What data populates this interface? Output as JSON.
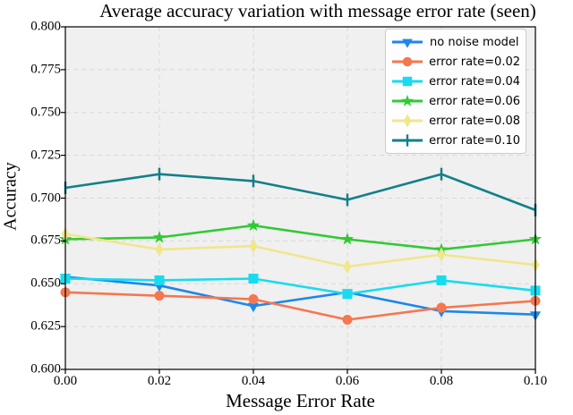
{
  "chart_data": {
    "type": "line",
    "title": "Average accuracy variation with message error rate (seen)",
    "xlabel": "Message Error Rate",
    "ylabel": "Accuracy",
    "xlim": [
      0.0,
      0.1
    ],
    "ylim": [
      0.6,
      0.8
    ],
    "x_tick_labels": [
      "0.00",
      "0.02",
      "0.04",
      "0.06",
      "0.08",
      "0.10"
    ],
    "y_tick_labels": [
      "0.600",
      "0.625",
      "0.650",
      "0.675",
      "0.700",
      "0.725",
      "0.750",
      "0.775",
      "0.800"
    ],
    "grid": true,
    "grid_style": "dashed",
    "legend_position": "upper right",
    "colors": {
      "plot_background": "#f0f0f0",
      "grid": "#d8d8d8",
      "spine": "#000000",
      "legend_border": "#cccccc",
      "legend_background": "#fdfdfd"
    },
    "x": [
      0.0,
      0.02,
      0.04,
      0.06,
      0.08,
      0.1
    ],
    "series": [
      {
        "name": "no noise model",
        "color": "#1d87ea",
        "marker": "triangle-down-icon",
        "values": [
          0.654,
          0.649,
          0.637,
          0.645,
          0.634,
          0.632
        ]
      },
      {
        "name": "error rate=0.02",
        "color": "#f5774f",
        "marker": "circle-icon",
        "values": [
          0.645,
          0.643,
          0.641,
          0.629,
          0.636,
          0.64
        ]
      },
      {
        "name": "error rate=0.04",
        "color": "#18dbf0",
        "marker": "square-icon",
        "values": [
          0.653,
          0.652,
          0.653,
          0.644,
          0.652,
          0.646
        ]
      },
      {
        "name": "error rate=0.06",
        "color": "#32c936",
        "marker": "star-icon",
        "values": [
          0.676,
          0.677,
          0.684,
          0.676,
          0.67,
          0.676
        ]
      },
      {
        "name": "error rate=0.08",
        "color": "#f0e68c",
        "marker": "diamond-icon",
        "values": [
          0.679,
          0.67,
          0.672,
          0.66,
          0.667,
          0.661
        ]
      },
      {
        "name": "error rate=0.10",
        "color": "#12808a",
        "marker": "vline-icon",
        "values": [
          0.706,
          0.714,
          0.71,
          0.699,
          0.714,
          0.693
        ]
      }
    ]
  }
}
